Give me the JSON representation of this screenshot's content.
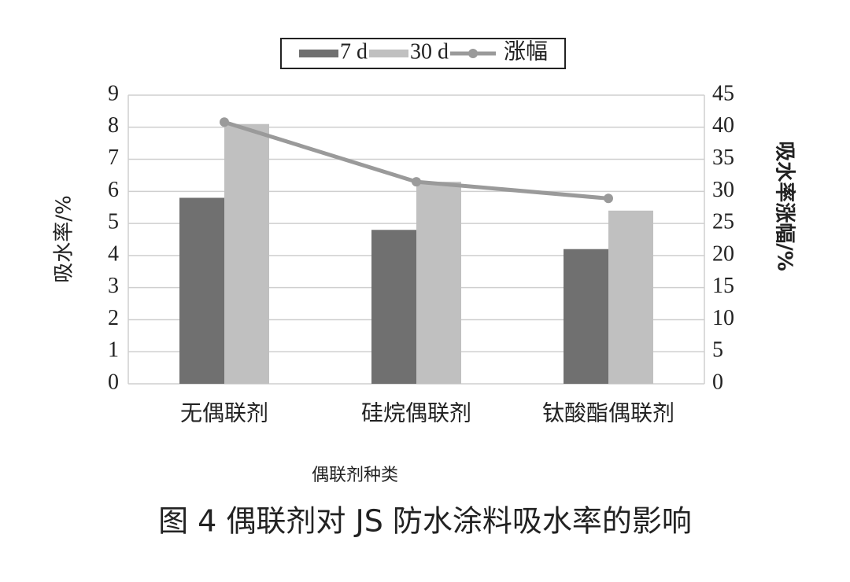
{
  "chart_data": {
    "type": "bar",
    "caption": "图 4 偶联剂对 JS 防水涂料吸水率的影响",
    "x_label": "偶联剂种类",
    "y_label": "吸水率/%",
    "y2_label": "吸水率涨幅/%",
    "categories": [
      "无偶联剂",
      "硅烷偶联剂",
      "钛酸酯偶联剂"
    ],
    "series": [
      {
        "name": "7 d",
        "color": "#707070",
        "values": [
          5.8,
          4.8,
          4.2
        ]
      },
      {
        "name": "30 d",
        "color": "#c0c0c0",
        "values": [
          8.1,
          6.3,
          5.4
        ]
      },
      {
        "name": "涨幅",
        "color": "#9a9a9a",
        "type": "line",
        "axis": "y2",
        "values": [
          40.8,
          31.5,
          28.9
        ]
      }
    ],
    "ylim": [
      0,
      9
    ],
    "yticks": [
      0,
      1,
      2,
      3,
      4,
      5,
      6,
      7,
      8,
      9
    ],
    "y2lim": [
      0,
      45
    ],
    "y2ticks": [
      0,
      5,
      10,
      15,
      20,
      25,
      30,
      35,
      40,
      45
    ],
    "grid": true,
    "legend": "top"
  }
}
